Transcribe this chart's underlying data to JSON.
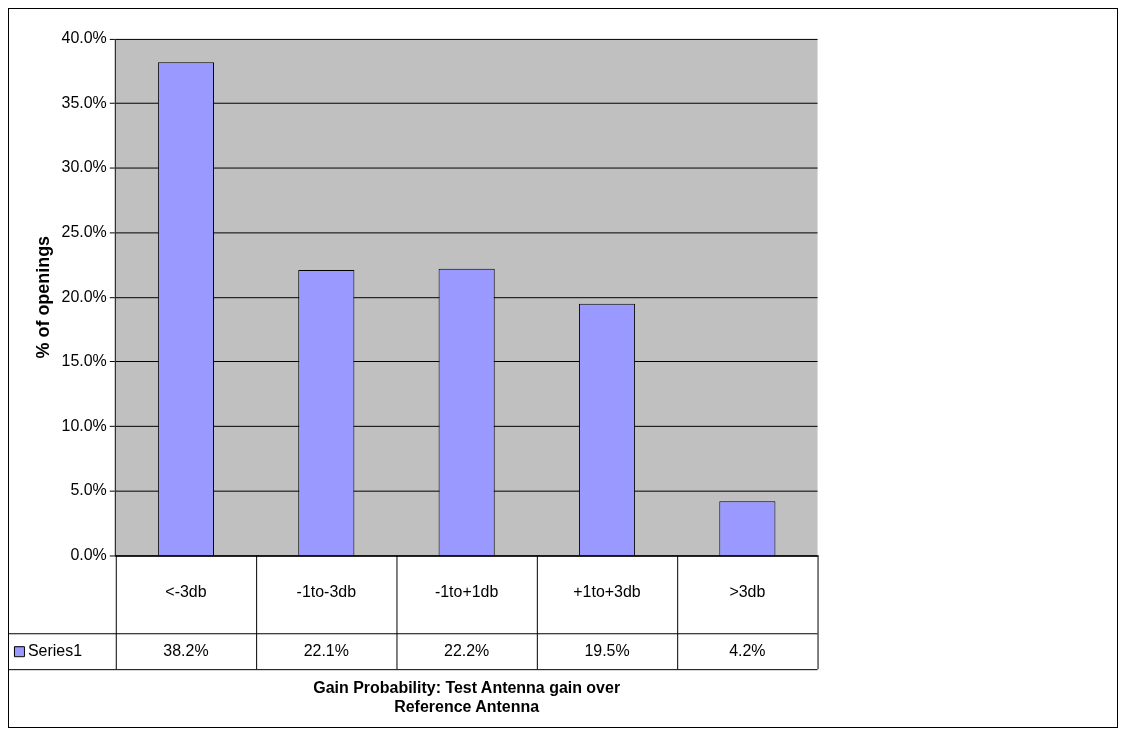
{
  "chart_data": {
    "type": "bar",
    "xlabel": "Gain Probability: Test Antenna gain over Reference Antenna",
    "ylabel": "% of openings",
    "categories": [
      "<-3db",
      "-1to-3db",
      "-1to+1db",
      "+1to+3db",
      ">3db"
    ],
    "series": [
      {
        "name": "Series1",
        "color": "#9999ff",
        "values": [
          38.2,
          22.1,
          22.2,
          19.5,
          4.2
        ],
        "value_labels": [
          "38.2%",
          "22.1%",
          "22.2%",
          "19.5%",
          "4.2%"
        ]
      }
    ],
    "ylim": [
      0,
      40
    ],
    "yticks": [
      {
        "value": 0,
        "label": "0.0%"
      },
      {
        "value": 5,
        "label": "5.0%"
      },
      {
        "value": 10,
        "label": "10.0%"
      },
      {
        "value": 15,
        "label": "15.0%"
      },
      {
        "value": 20,
        "label": "20.0%"
      },
      {
        "value": 25,
        "label": "25.0%"
      },
      {
        "value": 30,
        "label": "30.0%"
      },
      {
        "value": 35,
        "label": "35.0%"
      },
      {
        "value": 40,
        "label": "40.0%"
      }
    ],
    "grid": "y",
    "legend": "bottom"
  }
}
